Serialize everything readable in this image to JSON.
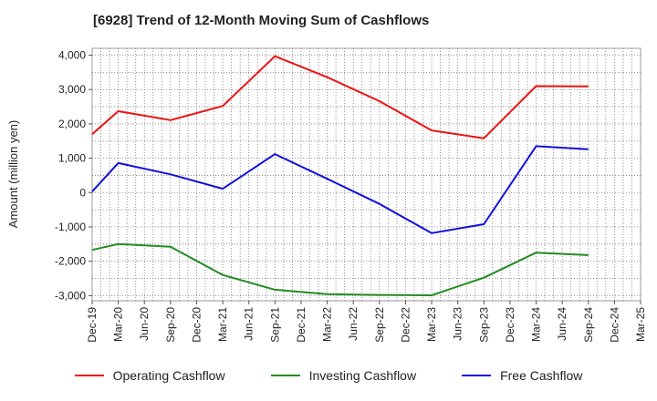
{
  "chart_data": {
    "type": "line",
    "title": "[6928]  Trend of 12-Month Moving Sum of Cashflows",
    "xlabel": "",
    "ylabel": "Amount (million yen)",
    "ylim": [
      -3150,
      4200
    ],
    "yticks": [
      4000,
      3000,
      2000,
      1000,
      0,
      -1000,
      -2000,
      -3000
    ],
    "ytick_labels": [
      "4,000",
      "3,000",
      "2,000",
      "1,000",
      "0",
      "-1,000",
      "-2,000",
      "-3,000"
    ],
    "categories": [
      "Dec-19",
      "Mar-20",
      "Jun-20",
      "Sep-20",
      "Dec-20",
      "Mar-21",
      "Jun-21",
      "Sep-21",
      "Dec-21",
      "Mar-22",
      "Jun-22",
      "Sep-22",
      "Dec-22",
      "Mar-23",
      "Jun-23",
      "Sep-23",
      "Dec-23",
      "Mar-24",
      "Jun-24",
      "Sep-24",
      "Dec-24",
      "Mar-25"
    ],
    "grid": true,
    "legend_position": "bottom",
    "series": [
      {
        "name": "Operating Cashflow",
        "color": "#ee1111",
        "values": [
          1700,
          2370,
          null,
          2110,
          null,
          2520,
          null,
          3970,
          null,
          3360,
          null,
          2660,
          null,
          1810,
          null,
          1580,
          null,
          3100,
          null,
          3090,
          null,
          null
        ]
      },
      {
        "name": "Investing Cashflow",
        "color": "#228b22",
        "values": [
          -1670,
          -1500,
          null,
          -1580,
          null,
          -2400,
          null,
          -2830,
          null,
          -2960,
          null,
          -2980,
          null,
          -2990,
          null,
          -2480,
          null,
          -1750,
          null,
          -1820,
          null,
          null
        ]
      },
      {
        "name": "Free Cashflow",
        "color": "#1010dd",
        "values": [
          30,
          860,
          null,
          530,
          null,
          110,
          null,
          1120,
          null,
          400,
          null,
          -330,
          null,
          -1180,
          null,
          -920,
          null,
          1350,
          null,
          1260,
          null,
          null
        ]
      }
    ]
  }
}
